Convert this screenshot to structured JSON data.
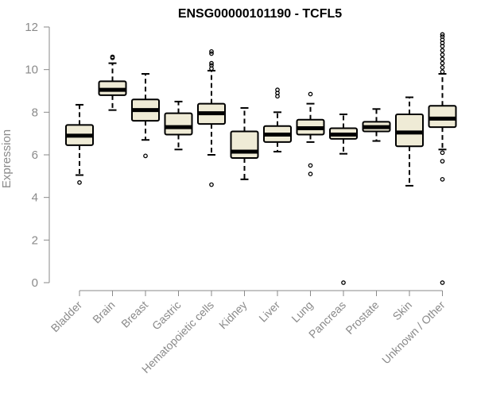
{
  "chart_data": {
    "type": "boxplot",
    "title": "ENSG00000101190 - TCFL5",
    "ylabel": "Expression",
    "xlabel": "",
    "ylim": [
      0,
      12
    ],
    "yticks": [
      "0",
      "2",
      "4",
      "6",
      "8",
      "10",
      "12"
    ],
    "box_fill": "#efebd6",
    "categories": [
      "Bladder",
      "Brain",
      "Breast",
      "Gastric",
      "Hematopoietic cells",
      "Kidney",
      "Liver",
      "Lung",
      "Pancreas",
      "Prostate",
      "Skin",
      "Unknown / Other"
    ],
    "boxes": [
      {
        "whislo": 5.05,
        "q1": 6.45,
        "med": 6.9,
        "q3": 7.4,
        "whishi": 8.35,
        "fliers": [
          4.7
        ]
      },
      {
        "whislo": 8.1,
        "q1": 8.8,
        "med": 9.05,
        "q3": 9.45,
        "whishi": 10.3,
        "fliers": [
          10.55,
          10.6
        ]
      },
      {
        "whislo": 6.7,
        "q1": 7.6,
        "med": 8.1,
        "q3": 8.6,
        "whishi": 9.8,
        "fliers": [
          5.95
        ]
      },
      {
        "whislo": 6.25,
        "q1": 6.95,
        "med": 7.3,
        "q3": 7.95,
        "whishi": 8.5,
        "fliers": []
      },
      {
        "whislo": 6.0,
        "q1": 7.45,
        "med": 7.95,
        "q3": 8.4,
        "whishi": 9.95,
        "fliers": [
          4.6,
          10.05,
          10.2,
          10.3,
          10.75,
          10.85
        ]
      },
      {
        "whislo": 4.85,
        "q1": 5.85,
        "med": 6.15,
        "q3": 7.1,
        "whishi": 8.2,
        "fliers": []
      },
      {
        "whislo": 6.15,
        "q1": 6.6,
        "med": 6.95,
        "q3": 7.35,
        "whishi": 8.0,
        "fliers": [
          8.75,
          8.9,
          9.05
        ]
      },
      {
        "whislo": 6.6,
        "q1": 6.95,
        "med": 7.25,
        "q3": 7.65,
        "whishi": 8.4,
        "fliers": [
          5.1,
          5.5,
          8.85
        ]
      },
      {
        "whislo": 6.05,
        "q1": 6.75,
        "med": 6.95,
        "q3": 7.25,
        "whishi": 7.9,
        "fliers": [
          0.0
        ]
      },
      {
        "whislo": 6.65,
        "q1": 7.1,
        "med": 7.3,
        "q3": 7.55,
        "whishi": 8.15,
        "fliers": []
      },
      {
        "whislo": 4.55,
        "q1": 6.4,
        "med": 7.05,
        "q3": 7.9,
        "whishi": 8.7,
        "fliers": []
      },
      {
        "whislo": 6.25,
        "q1": 7.3,
        "med": 7.7,
        "q3": 8.3,
        "whishi": 9.8,
        "fliers": [
          0.0,
          4.85,
          5.7,
          6.1,
          9.9,
          10.1,
          10.3,
          10.5,
          10.7,
          10.9,
          11.1,
          11.25,
          11.4,
          11.55,
          11.65
        ]
      }
    ]
  }
}
